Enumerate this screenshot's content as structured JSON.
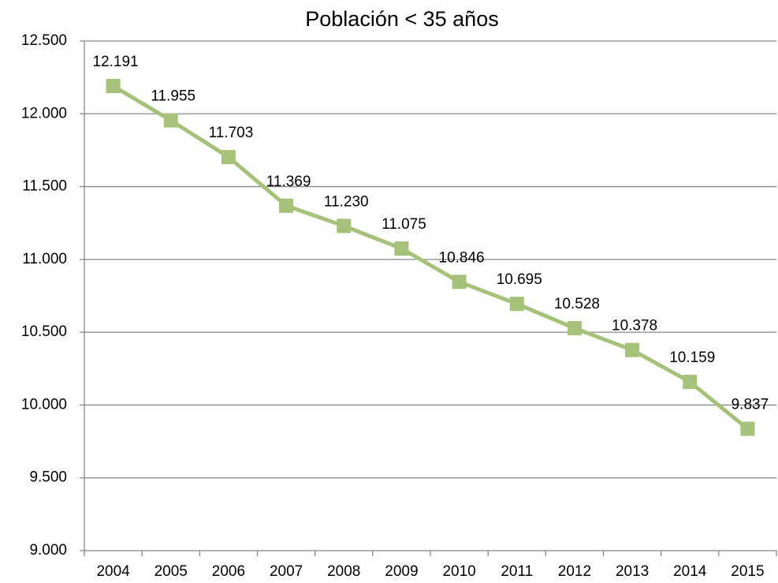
{
  "chart_data": {
    "type": "line",
    "title": "Población < 35 años",
    "categories": [
      "2004",
      "2005",
      "2006",
      "2007",
      "2008",
      "2009",
      "2010",
      "2011",
      "2012",
      "2013",
      "2014",
      "2015"
    ],
    "series": [
      {
        "name": "Población < 35 años",
        "color": "#a6c17a",
        "values": [
          12191,
          11955,
          11703,
          11369,
          11230,
          11075,
          10846,
          10695,
          10528,
          10378,
          10159,
          9837
        ],
        "value_labels": [
          "12.191",
          "11.955",
          "11.703",
          "11.369",
          "11.230",
          "11.075",
          "10.846",
          "10.695",
          "10.528",
          "10.378",
          "10.159",
          "9.837"
        ]
      }
    ],
    "ylim": [
      9000,
      12500
    ],
    "yticks": [
      {
        "value": 9000,
        "label": "9.000"
      },
      {
        "value": 9500,
        "label": "9.500"
      },
      {
        "value": 10000,
        "label": "10.000"
      },
      {
        "value": 10500,
        "label": "10.500"
      },
      {
        "value": 11000,
        "label": "11.000"
      },
      {
        "value": 11500,
        "label": "11.500"
      },
      {
        "value": 12000,
        "label": "12.000"
      },
      {
        "value": 12500,
        "label": "12.500"
      }
    ],
    "grid": true
  }
}
